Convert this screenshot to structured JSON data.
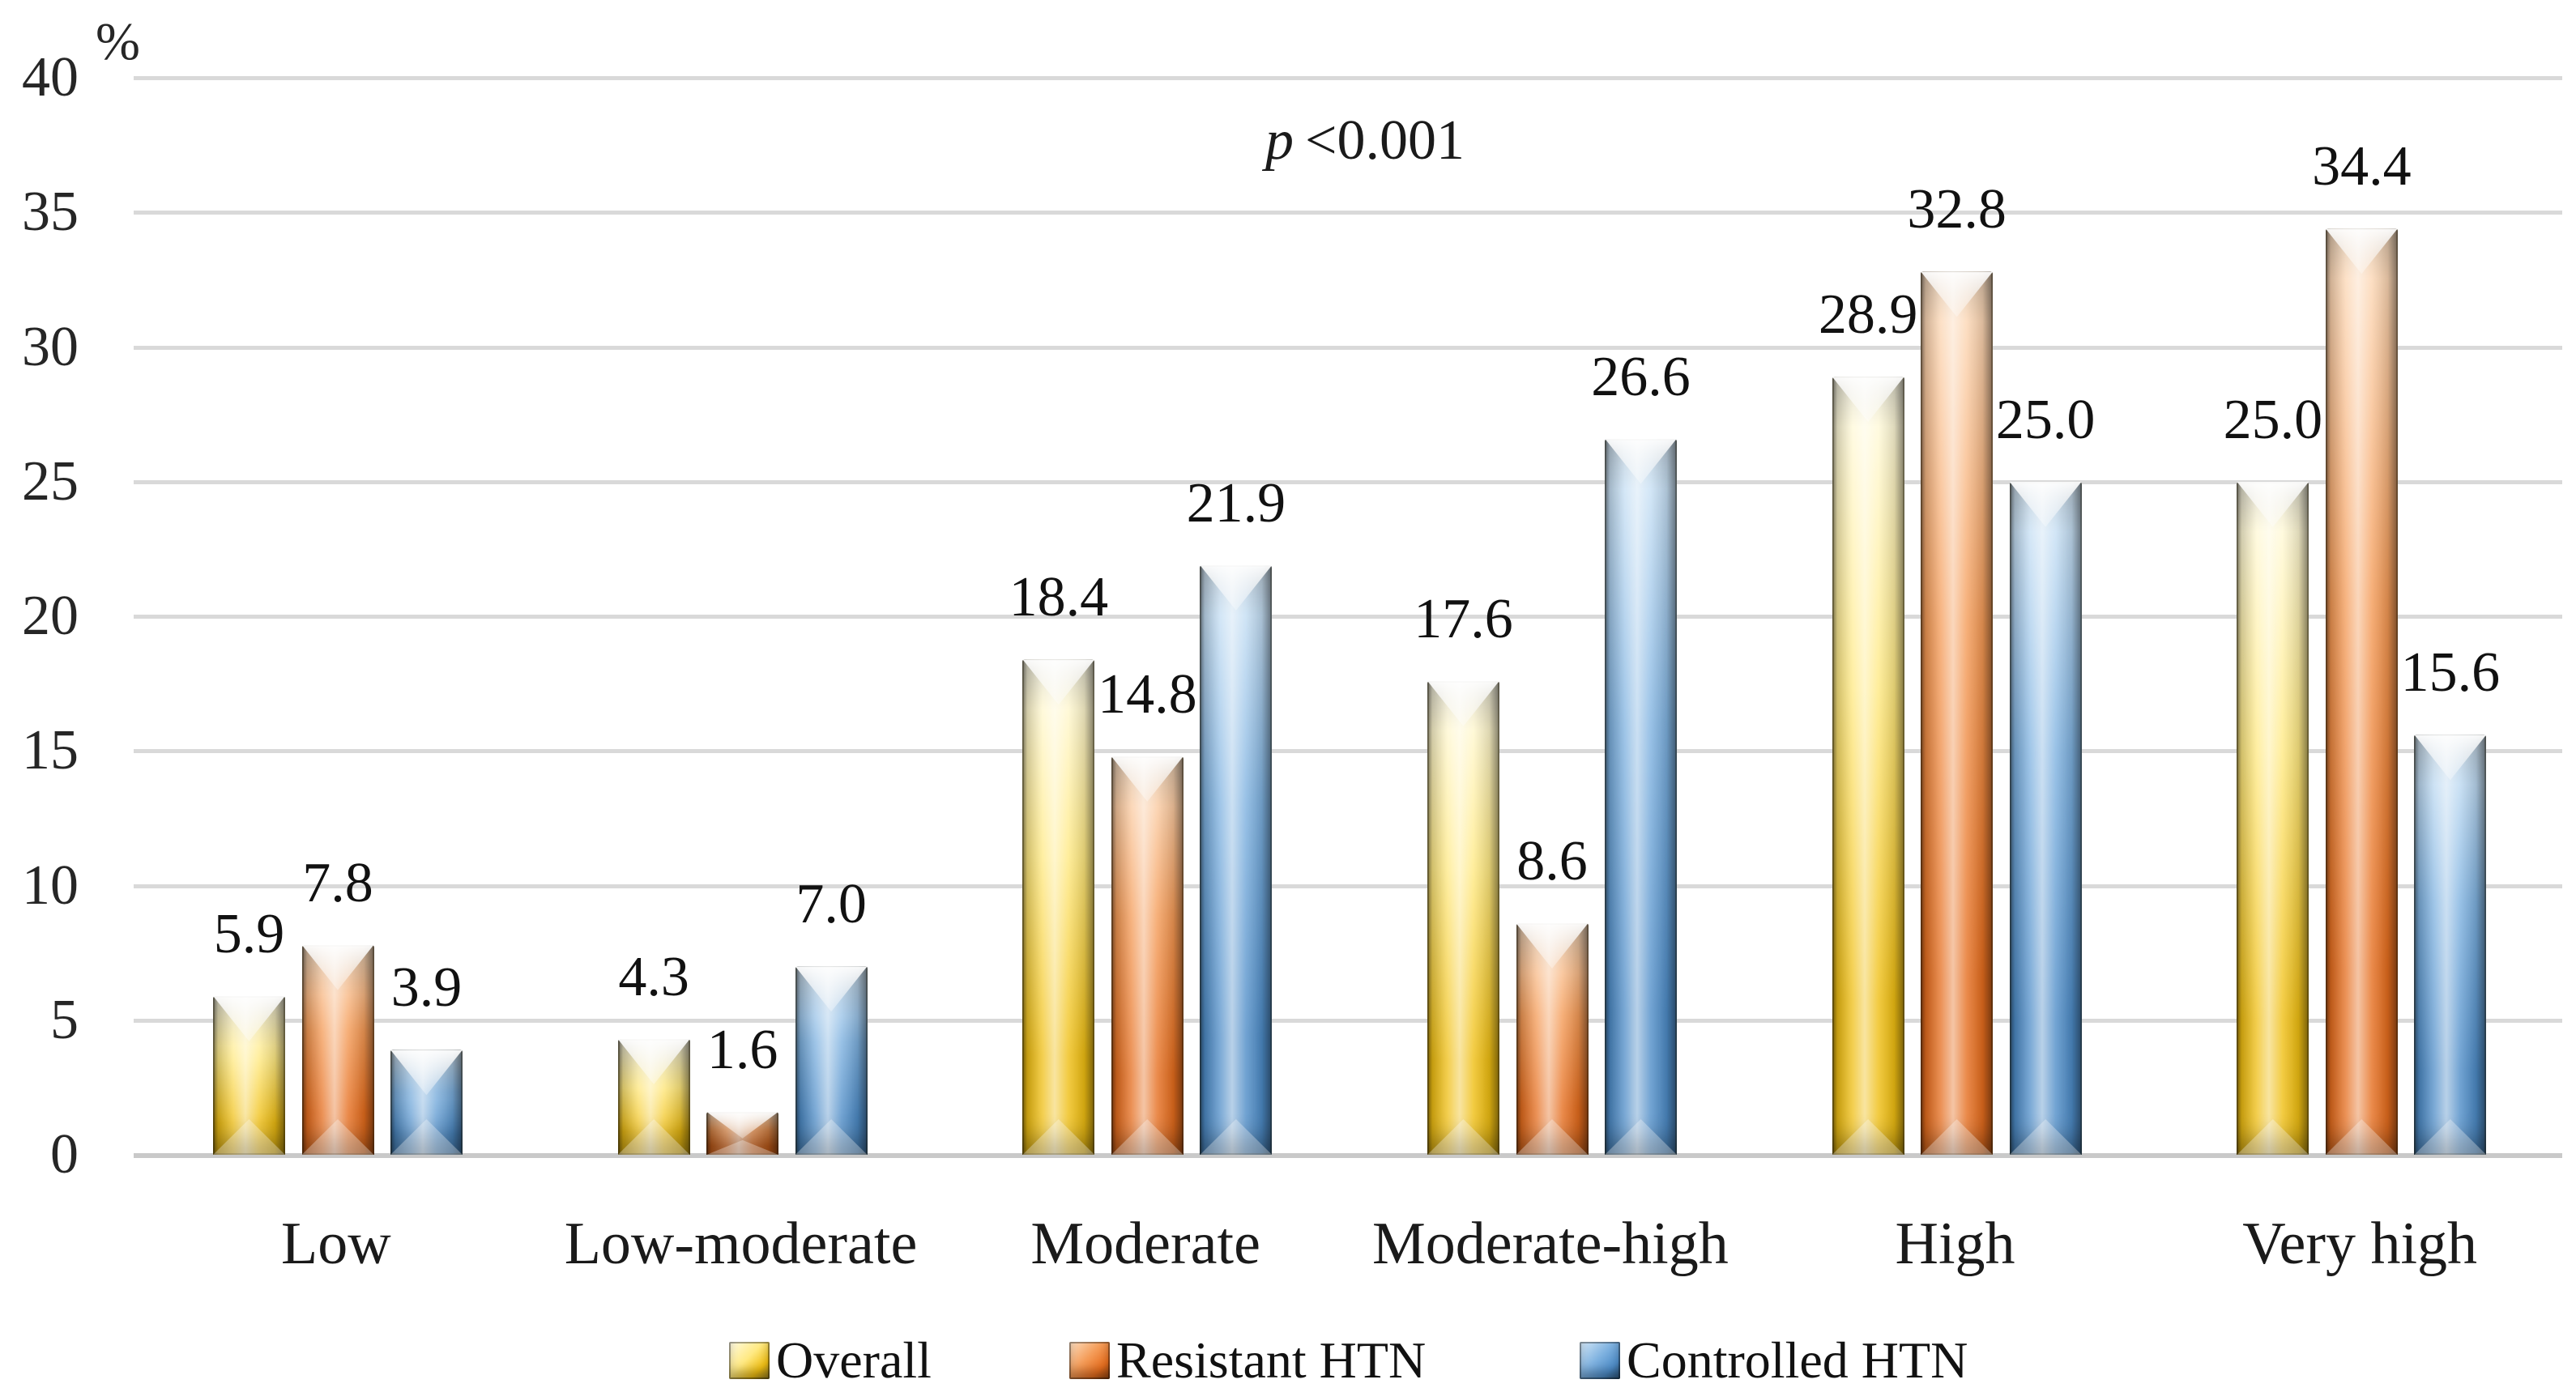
{
  "figure": {
    "background": "#FFFFFF",
    "annotation": {
      "text": "p <0.001",
      "italic_part": "p",
      "value_part": "<0.001"
    }
  },
  "chart_data": {
    "type": "bar",
    "title": "",
    "xlabel": "",
    "ylabel": "%",
    "ylim": [
      0,
      40
    ],
    "yticks": [
      0,
      5,
      10,
      15,
      20,
      25,
      30,
      35,
      40
    ],
    "grid": true,
    "legend_position": "bottom",
    "annotation": "p <0.001",
    "value_label_decimals": 1,
    "categories": [
      "Low",
      "Low-moderate",
      "Moderate",
      "Moderate-high",
      "High",
      "Very high"
    ],
    "series": [
      {
        "name": "Overall",
        "color": "#EFBE13",
        "color_light": "#FFFCE8",
        "color_mid": "#FFE982",
        "color_deep": "#8A7420",
        "values": [
          5.9,
          4.3,
          18.4,
          17.6,
          28.9,
          25.0
        ]
      },
      {
        "name": "Resistant HTN",
        "color": "#E56D1E",
        "color_light": "#FDE0C3",
        "color_mid": "#F49B57",
        "color_deep": "#8C3F0E",
        "values": [
          7.8,
          1.6,
          14.8,
          8.6,
          32.8,
          34.4
        ]
      },
      {
        "name": "Controlled HTN",
        "color": "#4E8CC7",
        "color_light": "#D6E9F8",
        "color_mid": "#7FB2E0",
        "color_deep": "#274C6E",
        "values": [
          3.9,
          7.0,
          21.9,
          26.6,
          25.0,
          15.6
        ]
      }
    ]
  }
}
